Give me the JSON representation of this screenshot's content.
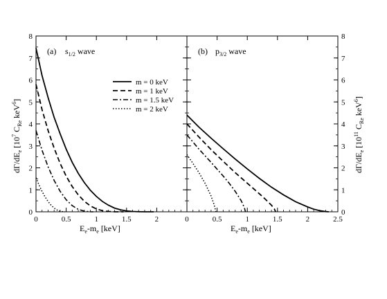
{
  "chart_data": [
    {
      "type": "line",
      "panel_label": "(a)",
      "title_main": "s",
      "title_sub": "1/2",
      "title_tail": " wave",
      "xlabel_main": "E",
      "xlabel_sub1": "e",
      "xlabel_mid": "-m",
      "xlabel_sub2": "e",
      "xlabel_tail": " [keV]",
      "ylabel_pre": "dΓ/dE",
      "ylabel_sub1": "e",
      "ylabel_mid": " [10",
      "ylabel_sup1": "7",
      "ylabel_mid2": " C",
      "ylabel_sub2": "Re",
      "ylabel_mid3": " keV",
      "ylabel_sup2": "6",
      "ylabel_end": "]",
      "xlim": [
        0,
        2.5
      ],
      "ylim": [
        0,
        8
      ],
      "xticks": [
        0,
        0.5,
        1,
        1.5,
        2
      ],
      "xticklabels": [
        "0",
        "0.5",
        "1",
        "1.5",
        "2"
      ],
      "yticks": [
        0,
        1,
        2,
        3,
        4,
        5,
        6,
        7,
        8
      ],
      "yticklabels": [
        "0",
        "1",
        "2",
        "3",
        "4",
        "5",
        "6",
        "7",
        "8"
      ],
      "legend_position": "top-right",
      "series": [
        {
          "name": "m = 0 keV",
          "style": "solid",
          "x": [
            0,
            0.1,
            0.2,
            0.3,
            0.4,
            0.5,
            0.6,
            0.7,
            0.8,
            0.9,
            1.0,
            1.1,
            1.2,
            1.3,
            1.4,
            1.5,
            1.6,
            1.7,
            1.8,
            1.9,
            1.95
          ],
          "y": [
            7.45,
            6.2,
            5.2,
            4.3,
            3.55,
            2.85,
            2.25,
            1.75,
            1.33,
            0.98,
            0.7,
            0.47,
            0.3,
            0.17,
            0.09,
            0.04,
            0.015,
            0.005,
            0.001,
            0.0,
            0.0
          ]
        },
        {
          "name": "m = 1 keV",
          "style": "dashed",
          "x": [
            0,
            0.1,
            0.2,
            0.3,
            0.4,
            0.5,
            0.6,
            0.7,
            0.8,
            0.9,
            1.0,
            1.1,
            1.2,
            1.3,
            1.4,
            1.45
          ],
          "y": [
            5.8,
            4.65,
            3.7,
            2.9,
            2.2,
            1.62,
            1.15,
            0.77,
            0.48,
            0.27,
            0.13,
            0.05,
            0.015,
            0.002,
            0.0,
            0.0
          ]
        },
        {
          "name": "m = 1.5 keV",
          "style": "dash-dot",
          "x": [
            0,
            0.1,
            0.2,
            0.3,
            0.4,
            0.5,
            0.6,
            0.7,
            0.8,
            0.9,
            0.95
          ],
          "y": [
            3.7,
            2.8,
            2.05,
            1.43,
            0.93,
            0.55,
            0.28,
            0.11,
            0.03,
            0.002,
            0.0
          ]
        },
        {
          "name": "m = 2 keV",
          "style": "dotted",
          "x": [
            0,
            0.05,
            0.1,
            0.15,
            0.2,
            0.25,
            0.3,
            0.35,
            0.4,
            0.45,
            0.48
          ],
          "y": [
            1.55,
            1.22,
            0.93,
            0.68,
            0.47,
            0.3,
            0.17,
            0.08,
            0.025,
            0.003,
            0.0
          ]
        }
      ]
    },
    {
      "type": "line",
      "panel_label": "(b)",
      "title_main": "p",
      "title_sub": "3/2",
      "title_tail": " wave",
      "xlabel_main": "E",
      "xlabel_sub1": "e",
      "xlabel_mid": "-m",
      "xlabel_sub2": "e",
      "xlabel_tail": " [keV]",
      "ylabel_pre": "dΓ/dE",
      "ylabel_sub1": "e",
      "ylabel_mid": " [10",
      "ylabel_sup1": "11",
      "ylabel_mid2": " C",
      "ylabel_sub2": "Re",
      "ylabel_mid3": " keV",
      "ylabel_sup2": "6",
      "ylabel_end": "]",
      "xlim": [
        0,
        2.5
      ],
      "ylim": [
        0,
        8
      ],
      "xticks": [
        0,
        0.5,
        1,
        1.5,
        2,
        2.5
      ],
      "xticklabels": [
        "0",
        "0.5",
        "1",
        "1.5",
        "2",
        "2.5"
      ],
      "yticks": [
        0,
        1,
        2,
        3,
        4,
        5,
        6,
        7,
        8
      ],
      "yticklabels": [
        "0",
        "1",
        "2",
        "3",
        "4",
        "5",
        "6",
        "7",
        "8"
      ],
      "series": [
        {
          "name": "m = 0 keV",
          "style": "solid",
          "x": [
            0,
            0.2,
            0.4,
            0.6,
            0.8,
            1.0,
            1.2,
            1.4,
            1.6,
            1.8,
            2.0,
            2.1,
            2.2,
            2.3,
            2.35
          ],
          "y": [
            4.4,
            3.85,
            3.35,
            2.87,
            2.4,
            1.95,
            1.52,
            1.12,
            0.77,
            0.46,
            0.22,
            0.12,
            0.05,
            0.01,
            0.0
          ]
        },
        {
          "name": "m = 1 keV",
          "style": "dashed",
          "x": [
            0,
            0.2,
            0.4,
            0.6,
            0.8,
            1.0,
            1.2,
            1.3,
            1.4,
            1.45,
            1.47
          ],
          "y": [
            4.0,
            3.4,
            2.83,
            2.3,
            1.78,
            1.3,
            0.82,
            0.57,
            0.3,
            0.12,
            0.0
          ]
        },
        {
          "name": "m = 1.5 keV",
          "style": "dash-dot",
          "x": [
            0,
            0.2,
            0.4,
            0.6,
            0.7,
            0.8,
            0.9,
            0.95,
            0.97
          ],
          "y": [
            3.5,
            2.85,
            2.25,
            1.63,
            1.3,
            0.93,
            0.5,
            0.2,
            0.0
          ]
        },
        {
          "name": "m = 2 keV",
          "style": "dotted",
          "x": [
            0,
            0.1,
            0.2,
            0.3,
            0.4,
            0.45,
            0.48
          ],
          "y": [
            2.6,
            2.2,
            1.78,
            1.3,
            0.72,
            0.33,
            0.0
          ]
        }
      ]
    }
  ]
}
